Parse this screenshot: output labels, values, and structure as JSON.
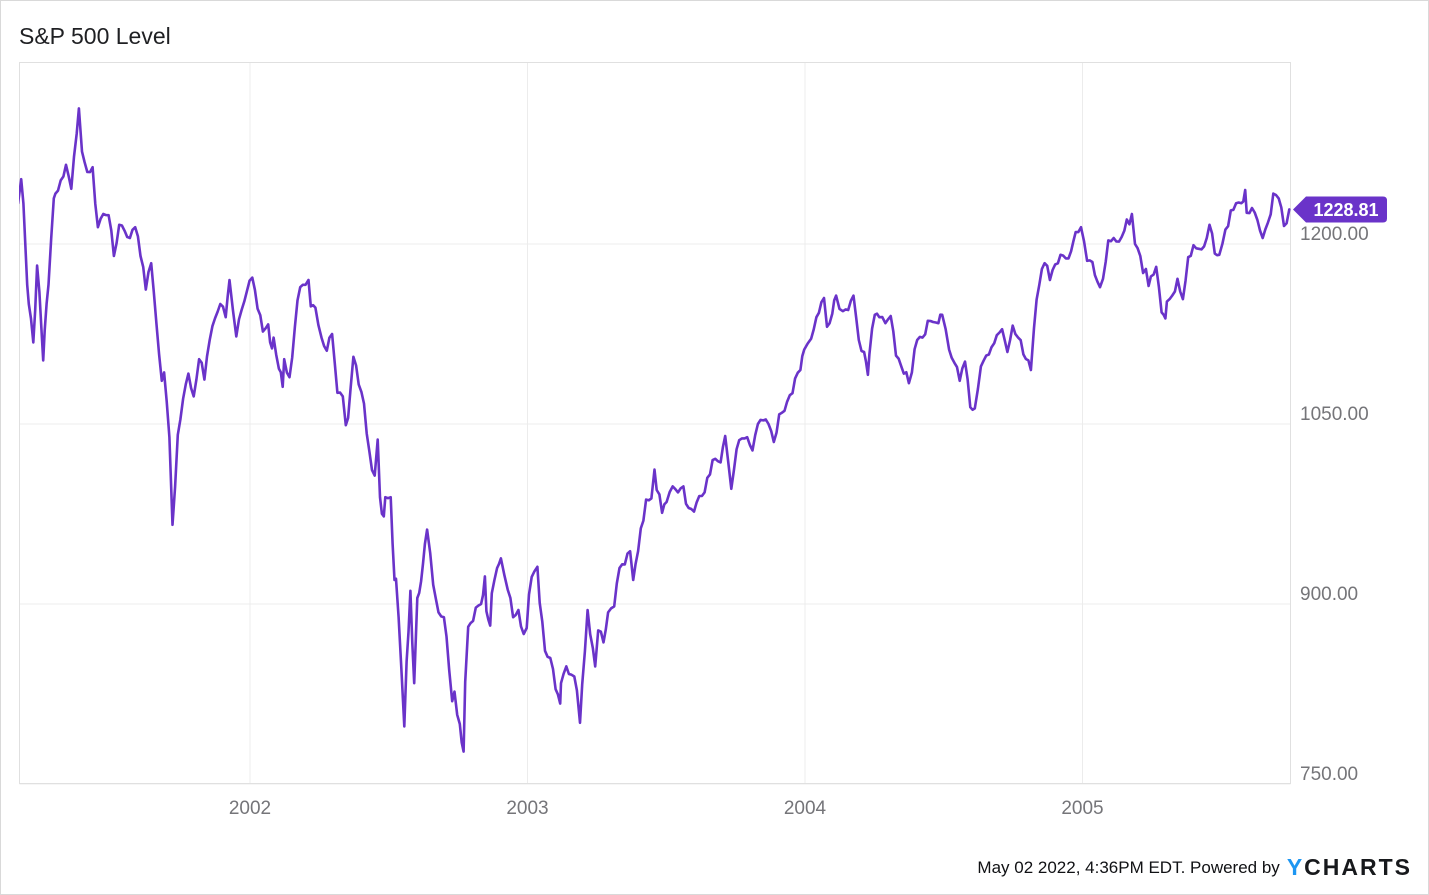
{
  "title": "S&P 500 Level",
  "footer": {
    "timestamp": "May 02 2022, 4:36PM EDT. Powered by",
    "logo_y": "Y",
    "logo_rest": "CHARTS"
  },
  "colors": {
    "line": "#6a33c9",
    "badge_bg": "#6a33c9",
    "badge_text": "#ffffff",
    "grid": "#ececec",
    "plot_border": "#e0e0e0",
    "axis_text": "#757579",
    "title_text": "#1f2023",
    "footer_text": "#101114",
    "logo_blue": "#1d96f2"
  },
  "chart_data": {
    "type": "line",
    "title": "S&P 500 Level",
    "series_name": "S&P 500 Level",
    "legend": "none",
    "grid": true,
    "y_axis_side": "right",
    "last_value": 1228.81,
    "last_value_label": "1228.81",
    "ylim": [
      750,
      1352
    ],
    "x_range": [
      "2001-03-02",
      "2005-09-30"
    ],
    "y_ticks": [
      {
        "label": "1200.00",
        "value": 1200
      },
      {
        "label": "1050.00",
        "value": 1050
      },
      {
        "label": "900.00",
        "value": 900
      },
      {
        "label": "750.00",
        "value": 750
      }
    ],
    "x_ticks": [
      {
        "label": "2002",
        "year": 2002
      },
      {
        "label": "2003",
        "year": 2003
      },
      {
        "label": "2004",
        "year": 2004
      },
      {
        "label": "2005",
        "year": 2005
      }
    ],
    "points": [
      [
        "2001-03-02",
        1234
      ],
      [
        "2001-03-06",
        1254
      ],
      [
        "2001-03-09",
        1234
      ],
      [
        "2001-03-14",
        1166
      ],
      [
        "2001-03-16",
        1150
      ],
      [
        "2001-03-22",
        1118
      ],
      [
        "2001-03-27",
        1182
      ],
      [
        "2001-03-30",
        1160
      ],
      [
        "2001-04-04",
        1103
      ],
      [
        "2001-04-06",
        1128
      ],
      [
        "2001-04-11",
        1166
      ],
      [
        "2001-04-18",
        1238
      ],
      [
        "2001-04-20",
        1242
      ],
      [
        "2001-04-27",
        1253
      ],
      [
        "2001-05-04",
        1266
      ],
      [
        "2001-05-11",
        1246
      ],
      [
        "2001-05-18",
        1292
      ],
      [
        "2001-05-21",
        1313
      ],
      [
        "2001-05-25",
        1277
      ],
      [
        "2001-06-01",
        1260
      ],
      [
        "2001-06-08",
        1264
      ],
      [
        "2001-06-15",
        1214
      ],
      [
        "2001-06-22",
        1225
      ],
      [
        "2001-06-29",
        1224
      ],
      [
        "2001-07-06",
        1190
      ],
      [
        "2001-07-13",
        1216
      ],
      [
        "2001-07-20",
        1211
      ],
      [
        "2001-07-27",
        1205
      ],
      [
        "2001-08-03",
        1214
      ],
      [
        "2001-08-10",
        1190
      ],
      [
        "2001-08-17",
        1162
      ],
      [
        "2001-08-24",
        1184
      ],
      [
        "2001-08-31",
        1133
      ],
      [
        "2001-09-07",
        1086
      ],
      [
        "2001-09-10",
        1093
      ],
      [
        "2001-09-17",
        1039
      ],
      [
        "2001-09-21",
        966
      ],
      [
        "2001-09-28",
        1041
      ],
      [
        "2001-10-05",
        1071
      ],
      [
        "2001-10-12",
        1092
      ],
      [
        "2001-10-19",
        1073
      ],
      [
        "2001-10-26",
        1104
      ],
      [
        "2001-11-02",
        1087
      ],
      [
        "2001-11-09",
        1120
      ],
      [
        "2001-11-16",
        1138
      ],
      [
        "2001-11-23",
        1150
      ],
      [
        "2001-11-30",
        1139
      ],
      [
        "2001-12-05",
        1170
      ],
      [
        "2001-12-14",
        1123
      ],
      [
        "2001-12-21",
        1145
      ],
      [
        "2001-12-28",
        1161
      ],
      [
        "2002-01-04",
        1172
      ],
      [
        "2002-01-11",
        1146
      ],
      [
        "2002-01-18",
        1127
      ],
      [
        "2002-01-25",
        1133
      ],
      [
        "2002-01-30",
        1113
      ],
      [
        "2002-02-01",
        1122
      ],
      [
        "2002-02-08",
        1096
      ],
      [
        "2002-02-13",
        1081
      ],
      [
        "2002-02-15",
        1104
      ],
      [
        "2002-02-22",
        1089
      ],
      [
        "2002-03-01",
        1131
      ],
      [
        "2002-03-08",
        1164
      ],
      [
        "2002-03-15",
        1166
      ],
      [
        "2002-03-19",
        1170
      ],
      [
        "2002-03-22",
        1148
      ],
      [
        "2002-03-28",
        1147
      ],
      [
        "2002-04-05",
        1122
      ],
      [
        "2002-04-12",
        1111
      ],
      [
        "2002-04-19",
        1125
      ],
      [
        "2002-04-26",
        1076
      ],
      [
        "2002-05-03",
        1073
      ],
      [
        "2002-05-07",
        1049
      ],
      [
        "2002-05-10",
        1055
      ],
      [
        "2002-05-17",
        1106
      ],
      [
        "2002-05-24",
        1083
      ],
      [
        "2002-05-31",
        1067
      ],
      [
        "2002-06-07",
        1027
      ],
      [
        "2002-06-14",
        1007
      ],
      [
        "2002-06-18",
        1037
      ],
      [
        "2002-06-21",
        989
      ],
      [
        "2002-06-26",
        973
      ],
      [
        "2002-06-28",
        989
      ],
      [
        "2002-07-05",
        989
      ],
      [
        "2002-07-10",
        920
      ],
      [
        "2002-07-12",
        921
      ],
      [
        "2002-07-19",
        847
      ],
      [
        "2002-07-23",
        798
      ],
      [
        "2002-07-26",
        852
      ],
      [
        "2002-07-31",
        911
      ],
      [
        "2002-08-05",
        834
      ],
      [
        "2002-08-09",
        905
      ],
      [
        "2002-08-14",
        919
      ],
      [
        "2002-08-19",
        950
      ],
      [
        "2002-08-22",
        962
      ],
      [
        "2002-08-30",
        916
      ],
      [
        "2002-09-06",
        893
      ],
      [
        "2002-09-13",
        889
      ],
      [
        "2002-09-20",
        845
      ],
      [
        "2002-09-24",
        819
      ],
      [
        "2002-09-27",
        827
      ],
      [
        "2002-10-04",
        800
      ],
      [
        "2002-10-09",
        777
      ],
      [
        "2002-10-11",
        835
      ],
      [
        "2002-10-15",
        881
      ],
      [
        "2002-10-18",
        884
      ],
      [
        "2002-10-25",
        897
      ],
      [
        "2002-11-01",
        900
      ],
      [
        "2002-11-06",
        923
      ],
      [
        "2002-11-08",
        894
      ],
      [
        "2002-11-13",
        882
      ],
      [
        "2002-11-15",
        909
      ],
      [
        "2002-11-22",
        930
      ],
      [
        "2002-11-27",
        938
      ],
      [
        "2002-12-06",
        912
      ],
      [
        "2002-12-13",
        889
      ],
      [
        "2002-12-20",
        895
      ],
      [
        "2002-12-27",
        875
      ],
      [
        "2002-12-31",
        880
      ],
      [
        "2003-01-03",
        908
      ],
      [
        "2003-01-10",
        927
      ],
      [
        "2003-01-14",
        931
      ],
      [
        "2003-01-17",
        901
      ],
      [
        "2003-01-24",
        861
      ],
      [
        "2003-01-31",
        855
      ],
      [
        "2003-02-07",
        829
      ],
      [
        "2003-02-13",
        817
      ],
      [
        "2003-02-14",
        834
      ],
      [
        "2003-02-21",
        848
      ],
      [
        "2003-02-28",
        841
      ],
      [
        "2003-03-07",
        828
      ],
      [
        "2003-03-11",
        801
      ],
      [
        "2003-03-14",
        833
      ],
      [
        "2003-03-21",
        895
      ],
      [
        "2003-03-28",
        863
      ],
      [
        "2003-03-31",
        848
      ],
      [
        "2003-04-04",
        878
      ],
      [
        "2003-04-11",
        868
      ],
      [
        "2003-04-17",
        893
      ],
      [
        "2003-04-25",
        898
      ],
      [
        "2003-05-02",
        930
      ],
      [
        "2003-05-09",
        933
      ],
      [
        "2003-05-16",
        944
      ],
      [
        "2003-05-20",
        920
      ],
      [
        "2003-05-23",
        933
      ],
      [
        "2003-05-30",
        963
      ],
      [
        "2003-06-06",
        987
      ],
      [
        "2003-06-13",
        988
      ],
      [
        "2003-06-17",
        1012
      ],
      [
        "2003-06-20",
        995
      ],
      [
        "2003-06-27",
        976
      ],
      [
        "2003-07-03",
        985
      ],
      [
        "2003-07-11",
        998
      ],
      [
        "2003-07-18",
        993
      ],
      [
        "2003-07-25",
        998
      ],
      [
        "2003-08-01",
        980
      ],
      [
        "2003-08-08",
        977
      ],
      [
        "2003-08-15",
        990
      ],
      [
        "2003-08-22",
        993
      ],
      [
        "2003-08-29",
        1008
      ],
      [
        "2003-09-05",
        1021
      ],
      [
        "2003-09-12",
        1018
      ],
      [
        "2003-09-18",
        1040
      ],
      [
        "2003-09-26",
        996
      ],
      [
        "2003-10-03",
        1029
      ],
      [
        "2003-10-10",
        1038
      ],
      [
        "2003-10-17",
        1039
      ],
      [
        "2003-10-24",
        1028
      ],
      [
        "2003-10-31",
        1050
      ],
      [
        "2003-11-07",
        1053
      ],
      [
        "2003-11-14",
        1050
      ],
      [
        "2003-11-21",
        1035
      ],
      [
        "2003-11-28",
        1058
      ],
      [
        "2003-12-05",
        1061
      ],
      [
        "2003-12-12",
        1074
      ],
      [
        "2003-12-19",
        1088
      ],
      [
        "2003-12-26",
        1095
      ],
      [
        "2003-12-31",
        1112
      ],
      [
        "2004-01-09",
        1121
      ],
      [
        "2004-01-16",
        1139
      ],
      [
        "2004-01-26",
        1155
      ],
      [
        "2004-01-30",
        1131
      ],
      [
        "2004-02-06",
        1142
      ],
      [
        "2004-02-11",
        1157
      ],
      [
        "2004-02-20",
        1144
      ],
      [
        "2004-02-27",
        1145
      ],
      [
        "2004-03-05",
        1157
      ],
      [
        "2004-03-12",
        1120
      ],
      [
        "2004-03-19",
        1110
      ],
      [
        "2004-03-24",
        1091
      ],
      [
        "2004-03-26",
        1108
      ],
      [
        "2004-04-02",
        1141
      ],
      [
        "2004-04-08",
        1139
      ],
      [
        "2004-04-16",
        1134
      ],
      [
        "2004-04-23",
        1140
      ],
      [
        "2004-04-30",
        1107
      ],
      [
        "2004-05-07",
        1098
      ],
      [
        "2004-05-17",
        1084
      ],
      [
        "2004-05-21",
        1093
      ],
      [
        "2004-05-28",
        1120
      ],
      [
        "2004-06-04",
        1122
      ],
      [
        "2004-06-11",
        1136
      ],
      [
        "2004-06-18",
        1135
      ],
      [
        "2004-06-25",
        1134
      ],
      [
        "2004-06-30",
        1141
      ],
      [
        "2004-07-09",
        1112
      ],
      [
        "2004-07-16",
        1101
      ],
      [
        "2004-07-23",
        1086
      ],
      [
        "2004-07-30",
        1102
      ],
      [
        "2004-08-06",
        1064
      ],
      [
        "2004-08-12",
        1063
      ],
      [
        "2004-08-20",
        1098
      ],
      [
        "2004-08-27",
        1107
      ],
      [
        "2004-09-03",
        1114
      ],
      [
        "2004-09-10",
        1124
      ],
      [
        "2004-09-17",
        1129
      ],
      [
        "2004-09-24",
        1110
      ],
      [
        "2004-10-01",
        1132
      ],
      [
        "2004-10-08",
        1122
      ],
      [
        "2004-10-15",
        1108
      ],
      [
        "2004-10-25",
        1095
      ],
      [
        "2004-10-29",
        1130
      ],
      [
        "2004-11-05",
        1166
      ],
      [
        "2004-11-12",
        1184
      ],
      [
        "2004-11-19",
        1170
      ],
      [
        "2004-11-26",
        1183
      ],
      [
        "2004-12-03",
        1191
      ],
      [
        "2004-12-10",
        1188
      ],
      [
        "2004-12-17",
        1194
      ],
      [
        "2004-12-23",
        1210
      ],
      [
        "2004-12-30",
        1214
      ],
      [
        "2005-01-07",
        1186
      ],
      [
        "2005-01-14",
        1185
      ],
      [
        "2005-01-24",
        1164
      ],
      [
        "2005-01-28",
        1171
      ],
      [
        "2005-02-04",
        1203
      ],
      [
        "2005-02-11",
        1205
      ],
      [
        "2005-02-18",
        1202
      ],
      [
        "2005-02-25",
        1211
      ],
      [
        "2005-03-07",
        1225
      ],
      [
        "2005-03-11",
        1200
      ],
      [
        "2005-03-18",
        1190
      ],
      [
        "2005-03-29",
        1165
      ],
      [
        "2005-04-01",
        1173
      ],
      [
        "2005-04-08",
        1181
      ],
      [
        "2005-04-15",
        1143
      ],
      [
        "2005-04-20",
        1138
      ],
      [
        "2005-04-22",
        1152
      ],
      [
        "2005-04-29",
        1157
      ],
      [
        "2005-05-06",
        1171
      ],
      [
        "2005-05-13",
        1154
      ],
      [
        "2005-05-20",
        1189
      ],
      [
        "2005-05-27",
        1199
      ],
      [
        "2005-06-03",
        1196
      ],
      [
        "2005-06-10",
        1198
      ],
      [
        "2005-06-17",
        1216
      ],
      [
        "2005-06-24",
        1192
      ],
      [
        "2005-06-30",
        1191
      ],
      [
        "2005-07-08",
        1212
      ],
      [
        "2005-07-15",
        1228
      ],
      [
        "2005-07-22",
        1234
      ],
      [
        "2005-07-29",
        1234
      ],
      [
        "2005-08-03",
        1245
      ],
      [
        "2005-08-05",
        1226
      ],
      [
        "2005-08-12",
        1230
      ],
      [
        "2005-08-19",
        1220
      ],
      [
        "2005-08-26",
        1205
      ],
      [
        "2005-09-02",
        1218
      ],
      [
        "2005-09-09",
        1242
      ],
      [
        "2005-09-16",
        1238
      ],
      [
        "2005-09-23",
        1215
      ],
      [
        "2005-09-30",
        1228.81
      ]
    ]
  }
}
